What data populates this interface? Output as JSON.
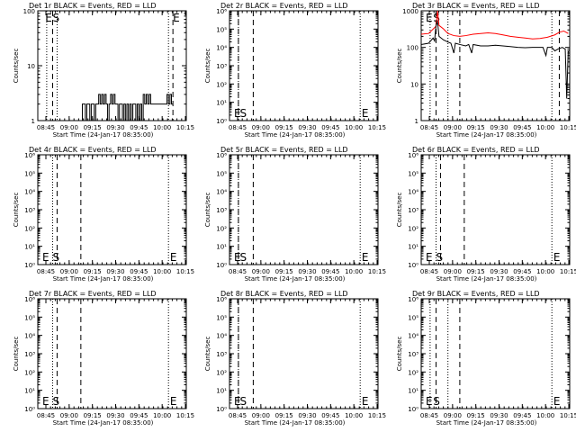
{
  "ylabel": "Counts/sec",
  "xlabel": "Start Time (24-Jan-17 08:35:00)",
  "x_ticks": [
    "08:45",
    "09:00",
    "09:15",
    "09:30",
    "09:45",
    "10:00",
    "10:15"
  ],
  "chart_data": [
    {
      "type": "line",
      "title": "Det 1r BLACK = Events, RED = LLD",
      "ylog": true,
      "ylim": [
        1,
        100
      ],
      "yticks": [
        "1",
        "10",
        "100"
      ],
      "xlim": [
        0,
        100
      ],
      "markers": {
        "dashed": [
          10,
          91
        ],
        "dotted": [
          6,
          13,
          88
        ],
        "labels": [
          {
            "text": "E",
            "x": 5,
            "pos": "top"
          },
          {
            "text": "S",
            "x": 10,
            "pos": "top"
          },
          {
            "text": "E",
            "x": 91,
            "pos": "top"
          }
        ]
      },
      "series": [
        {
          "color": "#000000",
          "steps": [
            [
              28,
              1
            ],
            [
              30,
              2
            ],
            [
              32,
              1
            ],
            [
              33,
              2
            ],
            [
              35,
              1
            ],
            [
              36,
              2
            ],
            [
              38,
              1
            ],
            [
              39,
              2
            ],
            [
              40,
              2
            ],
            [
              41,
              3
            ],
            [
              42,
              2
            ],
            [
              43,
              3
            ],
            [
              44,
              2
            ],
            [
              45,
              3
            ],
            [
              46,
              2
            ],
            [
              47,
              1
            ],
            [
              48,
              2
            ],
            [
              49,
              3
            ],
            [
              50,
              2
            ],
            [
              51,
              3
            ],
            [
              52,
              2
            ],
            [
              53,
              2
            ],
            [
              54,
              1
            ],
            [
              55,
              2
            ],
            [
              56,
              2
            ],
            [
              57,
              1
            ],
            [
              58,
              2
            ],
            [
              59,
              1
            ],
            [
              60,
              2
            ],
            [
              61,
              1
            ],
            [
              62,
              2
            ],
            [
              63,
              1
            ],
            [
              64,
              2
            ],
            [
              66,
              1
            ],
            [
              67,
              2
            ],
            [
              68,
              1
            ],
            [
              69,
              2
            ],
            [
              70,
              1
            ],
            [
              71,
              3
            ],
            [
              72,
              2
            ],
            [
              73,
              3
            ],
            [
              74,
              2
            ],
            [
              75,
              3
            ],
            [
              76,
              2
            ],
            [
              87,
              3
            ],
            [
              88,
              2
            ],
            [
              89,
              3
            ],
            [
              90,
              2
            ],
            [
              91,
              2
            ]
          ]
        }
      ]
    },
    {
      "type": "line",
      "title": "Det 2r BLACK = Events, RED = LLD",
      "ylog": true,
      "ylim": [
        1,
        1000000
      ],
      "yticks": [
        "10⁰",
        "10¹",
        "10²",
        "10³",
        "10⁴",
        "10⁵",
        "10⁶"
      ],
      "xlim": [
        0,
        100
      ],
      "markers": {
        "dashed": [
          6,
          16
        ],
        "dotted": [
          6,
          88
        ],
        "labels": [
          {
            "text": "E",
            "x": 3,
            "pos": "bottom"
          },
          {
            "text": "S",
            "x": 7,
            "pos": "bottom"
          },
          {
            "text": "E",
            "x": 89,
            "pos": "bottom"
          }
        ]
      },
      "series": []
    },
    {
      "type": "line",
      "title": "Det 3r BLACK = Events, RED = LLD",
      "ylog": true,
      "ylim": [
        1,
        1000
      ],
      "yticks": [
        "1",
        "10",
        "100",
        "1000"
      ],
      "xlim": [
        0,
        100
      ],
      "markers": {
        "dashed": [
          10,
          26,
          93
        ],
        "dotted": [
          6,
          18,
          88
        ],
        "labels": [
          {
            "text": "E",
            "x": 3,
            "pos": "top"
          },
          {
            "text": "S",
            "x": 8,
            "pos": "top"
          }
        ]
      },
      "series": [
        {
          "color": "#ff0000",
          "points": [
            [
              0,
              230
            ],
            [
              5,
              240
            ],
            [
              10,
              380
            ],
            [
              11,
              1000
            ],
            [
              12,
              400
            ],
            [
              15,
              320
            ],
            [
              18,
              240
            ],
            [
              22,
              210
            ],
            [
              26,
              200
            ],
            [
              30,
              210
            ],
            [
              35,
              230
            ],
            [
              40,
              240
            ],
            [
              45,
              250
            ],
            [
              50,
              240
            ],
            [
              55,
              220
            ],
            [
              60,
              200
            ],
            [
              65,
              190
            ],
            [
              70,
              180
            ],
            [
              75,
              170
            ],
            [
              80,
              175
            ],
            [
              85,
              190
            ],
            [
              90,
              220
            ],
            [
              93,
              260
            ],
            [
              96,
              280
            ],
            [
              99,
              240
            ]
          ]
        },
        {
          "color": "#000000",
          "points": [
            [
              0,
              120
            ],
            [
              5,
              130
            ],
            [
              8,
              180
            ],
            [
              9,
              150
            ],
            [
              10,
              400
            ],
            [
              11,
              500
            ],
            [
              12,
              200
            ],
            [
              15,
              160
            ],
            [
              18,
              140
            ],
            [
              20,
              130
            ],
            [
              22,
              70
            ],
            [
              23,
              130
            ],
            [
              26,
              120
            ],
            [
              30,
              110
            ],
            [
              32,
              120
            ],
            [
              34,
              70
            ],
            [
              35,
              120
            ],
            [
              40,
              110
            ],
            [
              45,
              110
            ],
            [
              50,
              115
            ],
            [
              55,
              110
            ],
            [
              60,
              105
            ],
            [
              65,
              100
            ],
            [
              70,
              98
            ],
            [
              75,
              100
            ],
            [
              80,
              100
            ],
            [
              82,
              100
            ],
            [
              84,
              60
            ],
            [
              85,
              100
            ],
            [
              88,
              100
            ],
            [
              90,
              80
            ],
            [
              92,
              90
            ],
            [
              95,
              100
            ],
            [
              97,
              90
            ],
            [
              98,
              4
            ],
            [
              99,
              80
            ]
          ]
        }
      ]
    },
    {
      "type": "line",
      "title": "Det 4r BLACK = Events, RED = LLD",
      "ylog": true,
      "ylim": [
        1,
        1000000
      ],
      "yticks": [
        "10⁰",
        "10¹",
        "10²",
        "10³",
        "10⁴",
        "10⁵",
        "10⁶"
      ],
      "xlim": [
        0,
        100
      ],
      "markers": {
        "dashed": [
          13,
          29
        ],
        "dotted": [
          10,
          88
        ],
        "labels": [
          {
            "text": "E",
            "x": 3,
            "pos": "bottom"
          },
          {
            "text": "S",
            "x": 10,
            "pos": "bottom"
          },
          {
            "text": "E",
            "x": 89,
            "pos": "bottom"
          }
        ]
      },
      "series": []
    },
    {
      "type": "line",
      "title": "Det 5r BLACK = Events, RED = LLD",
      "ylog": true,
      "ylim": [
        1,
        1000000
      ],
      "yticks": [
        "10⁰",
        "10¹",
        "10²",
        "10³",
        "10⁴",
        "10⁵",
        "10⁶"
      ],
      "xlim": [
        0,
        100
      ],
      "markers": {
        "dashed": [
          6,
          16
        ],
        "dotted": [
          6,
          88
        ],
        "labels": [
          {
            "text": "E",
            "x": 3,
            "pos": "bottom"
          },
          {
            "text": "S",
            "x": 7,
            "pos": "bottom"
          },
          {
            "text": "E",
            "x": 89,
            "pos": "bottom"
          }
        ]
      },
      "series": []
    },
    {
      "type": "line",
      "title": "Det 6r BLACK = Events, RED = LLD",
      "ylog": true,
      "ylim": [
        1,
        1000000
      ],
      "yticks": [
        "10⁰",
        "10¹",
        "10²",
        "10³",
        "10⁴",
        "10⁵",
        "10⁶"
      ],
      "xlim": [
        0,
        100
      ],
      "markers": {
        "dashed": [
          13,
          29
        ],
        "dotted": [
          10,
          88
        ],
        "labels": [
          {
            "text": "E",
            "x": 3,
            "pos": "bottom"
          },
          {
            "text": "S",
            "x": 10,
            "pos": "bottom"
          },
          {
            "text": "E",
            "x": 89,
            "pos": "bottom"
          }
        ]
      },
      "series": []
    },
    {
      "type": "line",
      "title": "Det 7r BLACK = Events, RED = LLD",
      "ylog": true,
      "ylim": [
        1,
        1000000
      ],
      "yticks": [
        "10⁰",
        "10¹",
        "10²",
        "10³",
        "10⁴",
        "10⁵",
        "10⁶"
      ],
      "xlim": [
        0,
        100
      ],
      "markers": {
        "dashed": [
          13,
          29
        ],
        "dotted": [
          10,
          88
        ],
        "labels": [
          {
            "text": "E",
            "x": 3,
            "pos": "bottom"
          },
          {
            "text": "S",
            "x": 10,
            "pos": "bottom"
          },
          {
            "text": "E",
            "x": 89,
            "pos": "bottom"
          }
        ]
      },
      "series": []
    },
    {
      "type": "line",
      "title": "Det 8r BLACK = Events, RED = LLD",
      "ylog": true,
      "ylim": [
        1,
        1000000
      ],
      "yticks": [
        "10⁰",
        "10¹",
        "10²",
        "10³",
        "10⁴",
        "10⁵",
        "10⁶"
      ],
      "xlim": [
        0,
        100
      ],
      "markers": {
        "dashed": [
          6,
          16
        ],
        "dotted": [
          6,
          88
        ],
        "labels": [
          {
            "text": "E",
            "x": 3,
            "pos": "bottom"
          },
          {
            "text": "S",
            "x": 7,
            "pos": "bottom"
          },
          {
            "text": "E",
            "x": 89,
            "pos": "bottom"
          }
        ]
      },
      "series": []
    },
    {
      "type": "line",
      "title": "Det 9r BLACK = Events, RED = LLD",
      "ylog": true,
      "ylim": [
        1,
        1000000
      ],
      "yticks": [
        "10⁰",
        "10¹",
        "10²",
        "10³",
        "10⁴",
        "10⁵",
        "10⁶"
      ],
      "xlim": [
        0,
        100
      ],
      "markers": {
        "dashed": [
          10,
          26
        ],
        "dotted": [
          6,
          18,
          88
        ],
        "labels": [
          {
            "text": "E",
            "x": 3,
            "pos": "bottom"
          },
          {
            "text": "S",
            "x": 8,
            "pos": "bottom"
          },
          {
            "text": "E",
            "x": 89,
            "pos": "bottom"
          }
        ]
      },
      "series": []
    }
  ]
}
